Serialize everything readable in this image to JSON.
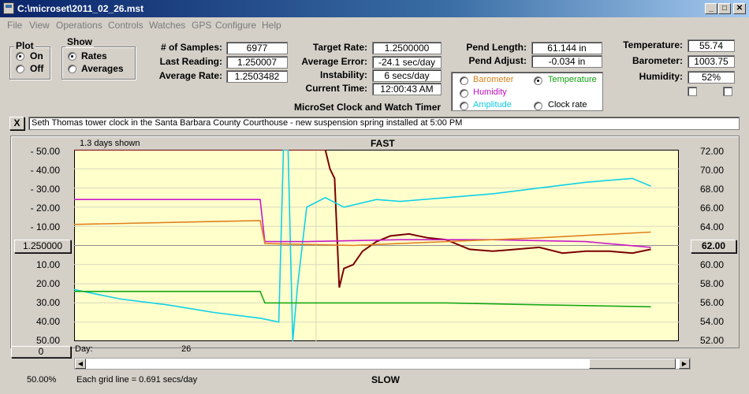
{
  "window": {
    "title": "C:\\microset\\2011_02_26.mst",
    "controls": {
      "minimize": "_",
      "maximize": "□",
      "close": "✕"
    }
  },
  "menu": [
    "File",
    "View",
    "Operations",
    "Controls",
    "Watches",
    "GPS",
    "Configure",
    "Help"
  ],
  "plot_group": {
    "label": "Plot",
    "options": [
      "On",
      "Off"
    ],
    "selected": "On"
  },
  "show_group": {
    "label": "Show",
    "options": [
      "Rates",
      "Averages"
    ],
    "selected": "Rates"
  },
  "stats": {
    "samples_label": "# of Samples:",
    "samples": "6977",
    "last_label": "Last Reading:",
    "last": "1.250007",
    "avg_label": "Average Rate:",
    "avg": "1.2503482"
  },
  "targets": {
    "target_label": "Target Rate:",
    "target": "1.2500000",
    "error_label": "Average Error:",
    "error": "-24.1 sec/day",
    "instability_label": "Instability:",
    "instability": "6 secs/day",
    "time_label": "Current Time:",
    "time": "12:00:43 AM"
  },
  "pendulum": {
    "length_label": "Pend Length:",
    "length": "61.144 in",
    "adjust_label": "Pend Adjust:",
    "adjust": "-0.034 in"
  },
  "series_select": {
    "options": [
      {
        "label": "Barometer",
        "color": "#d8801c",
        "selected": false
      },
      {
        "label": "Temperature",
        "color": "#10a010",
        "selected": true
      },
      {
        "label": "Humidity",
        "color": "#c010c0",
        "selected": false
      },
      {
        "label": "Amplitude",
        "color": "#10c8e0",
        "selected": false
      },
      {
        "label": "Clock rate",
        "color": "#000000",
        "selected": false
      }
    ]
  },
  "environment": {
    "temp_label": "Temperature:",
    "temp": "55.74",
    "baro_label": "Barometer:",
    "baro": "1003.75",
    "hum_label": "Humidity:",
    "hum": "52%"
  },
  "app_caption": "MicroSet Clock and Watch Timer",
  "clear_button": "X",
  "note": "Seth Thomas tower clock in the Santa Barbara County Courthouse - new suspension spring installed at  5:00 PM",
  "chart": {
    "days_shown": "1.3 days shown",
    "top_label": "FAST",
    "bottom_label": "SLOW",
    "left_ticks": [
      "- 50.00",
      "- 40.00",
      "- 30.00",
      "- 20.00",
      "- 10.00",
      "10.00",
      "20.00",
      "30.00",
      "40.00"
    ],
    "left_bottom": "50.00",
    "left_center_button": "1.250000",
    "left_zero_button": "0",
    "right_ticks": [
      "72.00",
      "70.00",
      "68.00",
      "66.00",
      "64.00",
      "60.00",
      "58.00",
      "56.00",
      "54.00",
      "52.00"
    ],
    "right_center_button": "62.00",
    "day_label": "Day:",
    "day_value": "26",
    "zoom": "50.00%",
    "grid_note": "Each grid line = 0.691 secs/day"
  },
  "chart_data": {
    "type": "line",
    "title": "",
    "x_unit": "days",
    "xlim": [
      0,
      1.3
    ],
    "y_left_lim": [
      -50,
      50
    ],
    "y_left_inverted": true,
    "y_right_lim": [
      52,
      72
    ],
    "grid": true,
    "series": [
      {
        "name": "Clock rate",
        "axis": "left",
        "color": "#7a0000",
        "x": [
          0,
          0.54,
          0.55,
          0.56,
          0.57,
          0.58,
          0.6,
          0.62,
          0.65,
          0.68,
          0.72,
          0.76,
          0.8,
          0.85,
          0.9,
          0.95,
          1.0,
          1.05,
          1.1,
          1.15,
          1.2,
          1.24
        ],
        "y": [
          -50,
          -50,
          -40,
          -35,
          22,
          12,
          10,
          3,
          -2,
          -5,
          -6,
          -4,
          -3,
          2,
          3,
          2,
          1,
          4,
          3,
          3,
          4,
          2
        ]
      },
      {
        "name": "Amplitude",
        "axis": "left",
        "color": "#10d0e8",
        "x": [
          0,
          0.1,
          0.2,
          0.3,
          0.4,
          0.44,
          0.45,
          0.46,
          0.47,
          0.48,
          0.5,
          0.54,
          0.58,
          0.65,
          0.7,
          0.8,
          0.9,
          1.0,
          1.1,
          1.2,
          1.24
        ],
        "y": [
          23,
          28,
          31,
          35,
          38,
          40,
          -50,
          -50,
          50,
          22,
          -20,
          -25,
          -20,
          -24,
          -23,
          -25,
          -27,
          -30,
          -33,
          -35,
          -31
        ]
      },
      {
        "name": "Humidity",
        "axis": "left",
        "color": "#c818c8",
        "x": [
          0,
          0.4,
          0.41,
          0.5,
          0.7,
          0.9,
          1.1,
          1.24
        ],
        "y": [
          -24,
          -24,
          -2,
          -2,
          -3,
          -3,
          -2,
          1
        ]
      },
      {
        "name": "Barometer",
        "axis": "left",
        "color": "#e08020",
        "x": [
          0,
          0.4,
          0.41,
          0.6,
          0.8,
          1.0,
          1.24
        ],
        "y": [
          -11,
          -13,
          -1,
          0,
          -2,
          -4,
          -7
        ]
      },
      {
        "name": "Temperature",
        "axis": "left",
        "color": "#18a818",
        "x": [
          0,
          0.4,
          0.41,
          0.6,
          0.8,
          1.0,
          1.24
        ],
        "y": [
          24,
          24,
          30,
          30,
          30,
          31,
          32
        ]
      }
    ]
  }
}
